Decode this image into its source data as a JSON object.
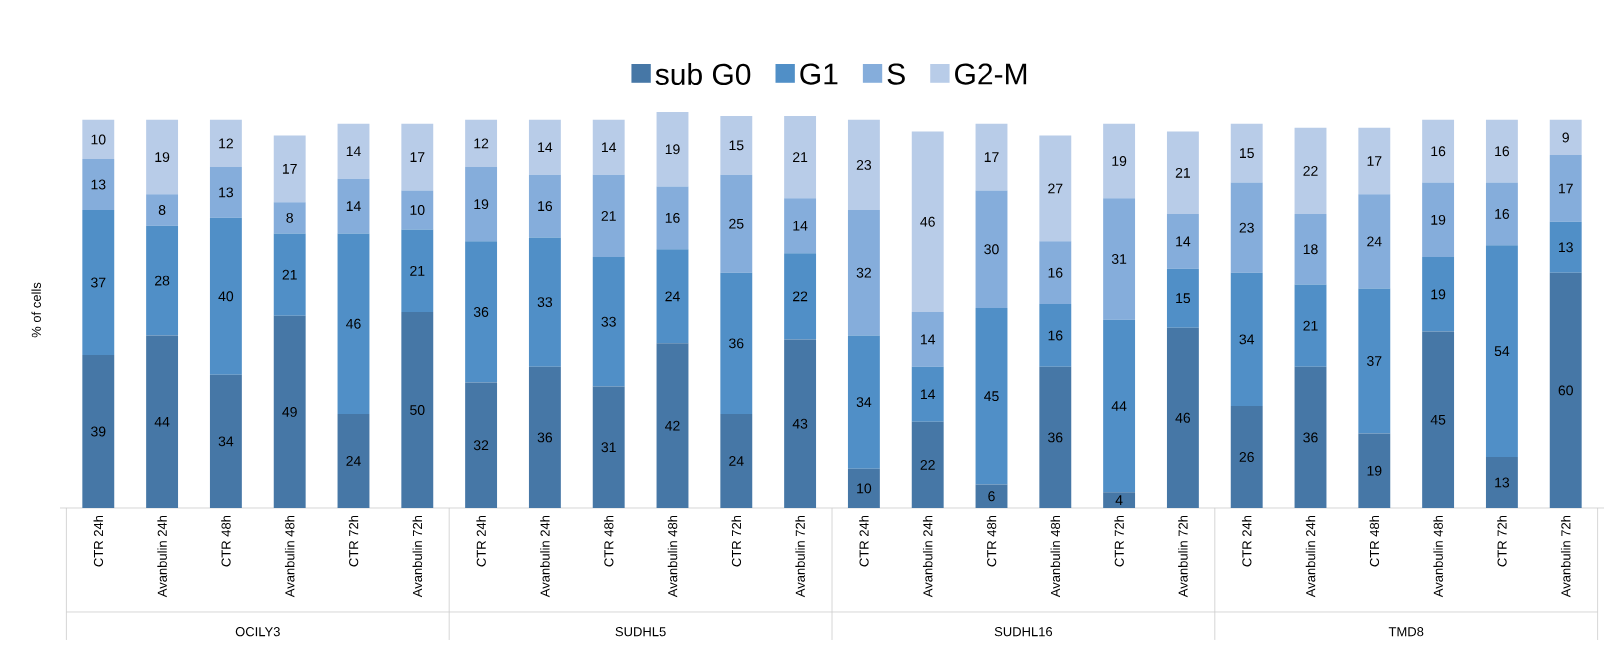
{
  "chart_data": {
    "type": "bar",
    "stacked": true,
    "ylabel": "% of cells",
    "data_labels": true,
    "legend": "top",
    "tick_labels": "x",
    "categories": [
      "CTR 24h",
      "Avanbulin 24h",
      "CTR 48h",
      "Avanbulin 48h",
      "CTR 72h",
      "Avanbulin 72h",
      "CTR 24h",
      "Avanbulin 24h",
      "CTR 48h",
      "Avanbulin 48h",
      "CTR 72h",
      "Avanbulin 72h",
      "CTR 24h",
      "Avanbulin 24h",
      "CTR 48h",
      "Avanbulin 48h",
      "CTR 72h",
      "Avanbulin 72h",
      "CTR 24h",
      "Avanbulin 24h",
      "CTR 48h",
      "Avanbulin 48h",
      "CTR 72h",
      "Avanbulin 72h"
    ],
    "annotations": [
      "OCILY3",
      "SUDHL5",
      "SUDHL16",
      "TMD8"
    ],
    "series": [
      {
        "name": "sub G0",
        "color": "#4677a6",
        "values": [
          39,
          44,
          34,
          49,
          24,
          50,
          32,
          36,
          31,
          42,
          24,
          43,
          10,
          22,
          6,
          36,
          4,
          46,
          26,
          36,
          19,
          45,
          13,
          60
        ]
      },
      {
        "name": "G1",
        "color": "#508fc7",
        "values": [
          37,
          28,
          40,
          21,
          46,
          21,
          36,
          33,
          33,
          24,
          36,
          22,
          34,
          14,
          45,
          16,
          44,
          15,
          34,
          21,
          37,
          19,
          54,
          13
        ]
      },
      {
        "name": "S",
        "color": "#85addb",
        "values": [
          13,
          8,
          13,
          8,
          14,
          10,
          19,
          16,
          21,
          16,
          25,
          14,
          32,
          14,
          30,
          16,
          31,
          14,
          23,
          18,
          24,
          19,
          16,
          17
        ]
      },
      {
        "name": "G2-M",
        "color": "#b8cce8",
        "values": [
          10,
          19,
          12,
          17,
          14,
          17,
          12,
          14,
          14,
          19,
          15,
          21,
          23,
          46,
          17,
          27,
          19,
          21,
          15,
          22,
          17,
          16,
          16,
          9
        ]
      }
    ]
  }
}
